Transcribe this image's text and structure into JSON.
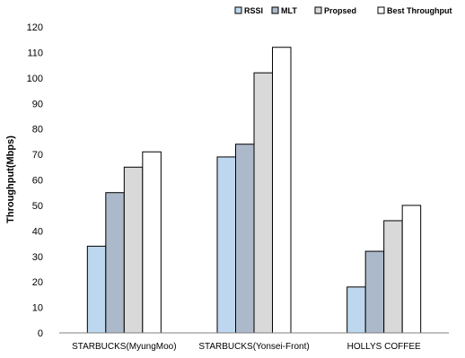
{
  "chart_data": {
    "type": "bar",
    "title": "",
    "xlabel": "",
    "ylabel": "Throughput(Mbps)",
    "ylim": [
      0,
      120
    ],
    "yticks": [
      0,
      10,
      20,
      30,
      40,
      50,
      60,
      70,
      80,
      90,
      100,
      110,
      120
    ],
    "grid": false,
    "legend_position": "top-right",
    "categories": [
      "STARBUCKS(MyungMoo)",
      "STARBUCKS(Yonsei-Front)",
      "HOLLYS COFFEE"
    ],
    "series": [
      {
        "name": "RSSI",
        "color": "#bdd7ee",
        "values": [
          34,
          69,
          18
        ]
      },
      {
        "name": "MLT",
        "color": "#acb9ca",
        "values": [
          55,
          74,
          32
        ]
      },
      {
        "name": "Propsed",
        "color": "#d9d9d9",
        "values": [
          65,
          102,
          44
        ]
      },
      {
        "name": "Best Throughput",
        "color": "#ffffff",
        "values": [
          71,
          112,
          50
        ]
      }
    ]
  }
}
